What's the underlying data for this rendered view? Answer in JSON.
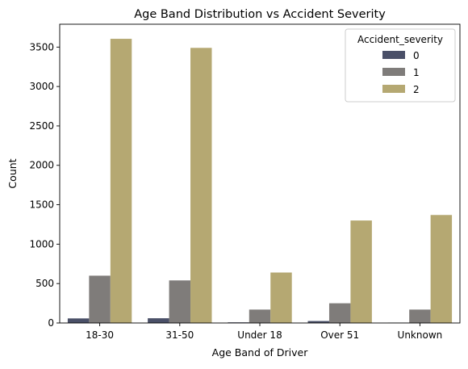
{
  "chart_data": {
    "type": "bar",
    "title": "Age Band Distribution vs Accident Severity",
    "xlabel": "Age Band of Driver",
    "ylabel": "Count",
    "categories": [
      "18-30",
      "31-50",
      "Under 18",
      "Over 51",
      "Unknown"
    ],
    "yticks": [
      0,
      500,
      1000,
      1500,
      2000,
      2500,
      3000,
      3500
    ],
    "ylim": [
      0,
      3790
    ],
    "grid": false,
    "legend": {
      "title": "Accident_severity",
      "placement": "top-right"
    },
    "series": [
      {
        "name": "0",
        "color": "#4a5068",
        "values": [
          58,
          60,
          8,
          25,
          5
        ]
      },
      {
        "name": "1",
        "color": "#7f7c7a",
        "values": [
          600,
          540,
          170,
          250,
          170
        ]
      },
      {
        "name": "2",
        "color": "#b5a872",
        "values": [
          3605,
          3490,
          640,
          1300,
          1370
        ]
      }
    ]
  }
}
